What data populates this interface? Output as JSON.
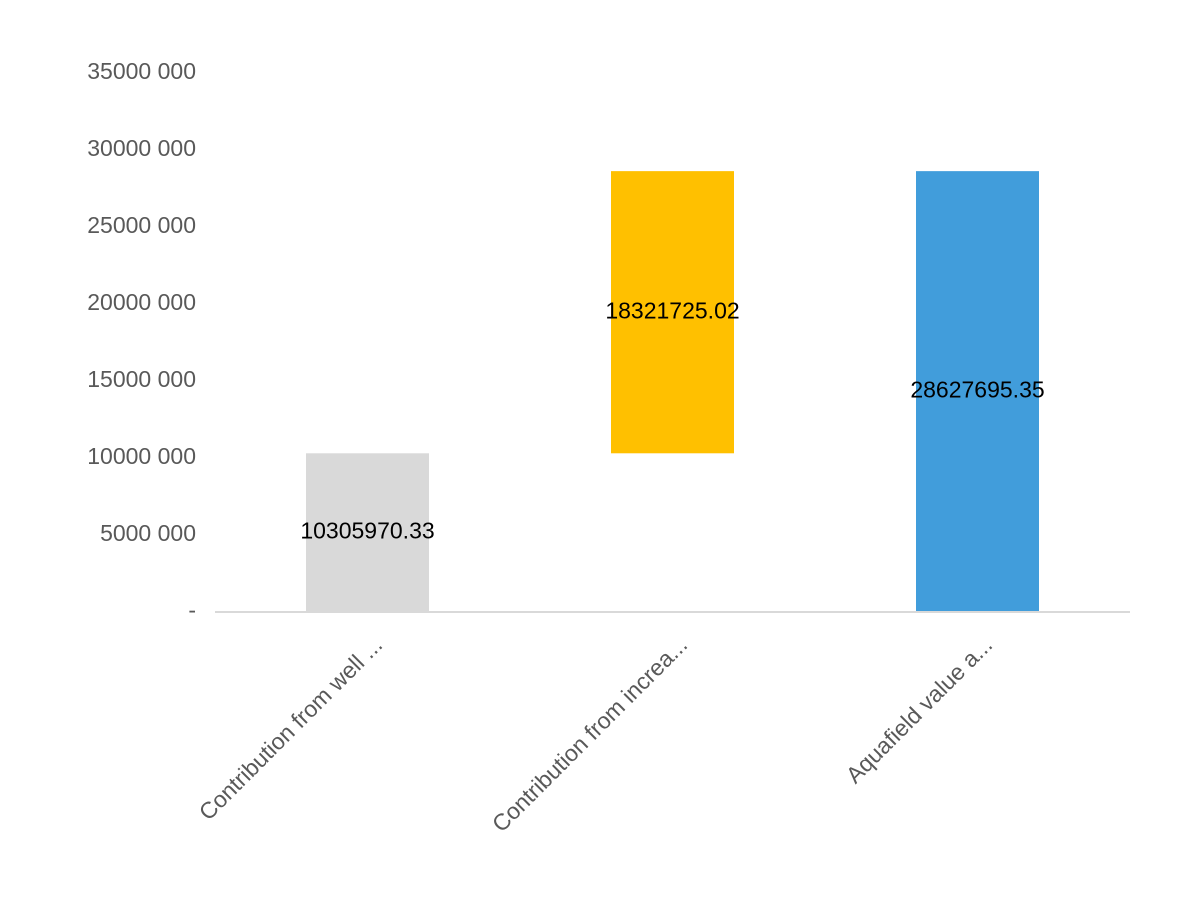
{
  "chart_data": {
    "type": "waterfall",
    "categories": [
      "Contribution from well ...",
      "Contribution from increa...",
      "Aquafield value a..."
    ],
    "values": [
      10305970.33,
      18321725.02,
      28627695.35
    ],
    "measure": [
      "relative",
      "relative",
      "total"
    ],
    "colors": [
      "#d9d9d9",
      "#ffc000",
      "#419ddb"
    ],
    "ylim": [
      0,
      35000000
    ],
    "yticks": [
      {
        "value": 0,
        "label": "-"
      },
      {
        "value": 5000000,
        "label": "5000 000"
      },
      {
        "value": 10000000,
        "label": "10000 000"
      },
      {
        "value": 15000000,
        "label": "15000 000"
      },
      {
        "value": 20000000,
        "label": "20000 000"
      },
      {
        "value": 25000000,
        "label": "25000 000"
      },
      {
        "value": 30000000,
        "label": "30000 000"
      },
      {
        "value": 35000000,
        "label": "35000 000"
      }
    ],
    "grid": false
  }
}
